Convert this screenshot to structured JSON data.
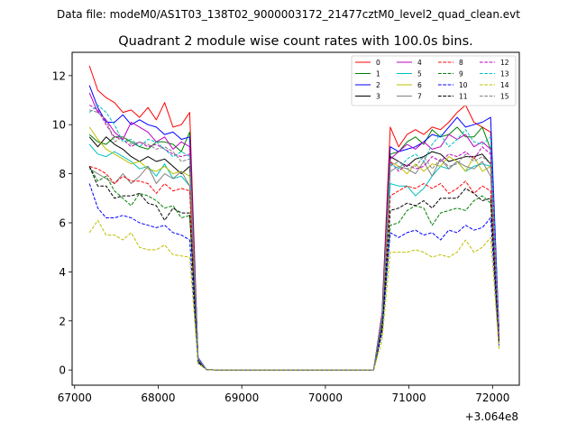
{
  "suptitle": "Data file: modeM0/AS1T03_138T02_9000003172_21477cztM0_level2_quad_clean.evt",
  "chart_data": {
    "type": "line",
    "title": "Quadrant 2 module wise count rates with 100.0s bins.",
    "xlabel": "",
    "ylabel": "",
    "x_offset_label": "+3.064e8",
    "xlim": [
      66970,
      72320
    ],
    "ylim": [
      -0.62,
      12.95
    ],
    "xticks": [
      67000,
      68000,
      69000,
      70000,
      71000,
      72000
    ],
    "yticks": [
      0,
      2,
      4,
      6,
      8,
      10,
      12
    ],
    "legend": {
      "placement": "top-right",
      "columns": 4
    },
    "x": [
      67177,
      67277,
      67377,
      67477,
      67577,
      67677,
      67777,
      67877,
      67977,
      68077,
      68177,
      68277,
      68377,
      68477,
      68577,
      68677,
      68777,
      68877,
      68977,
      69077,
      69177,
      69277,
      69377,
      69477,
      69577,
      69677,
      69777,
      69877,
      69977,
      70077,
      70177,
      70277,
      70377,
      70477,
      70577,
      70677,
      70777,
      70877,
      70977,
      71077,
      71177,
      71277,
      71377,
      71477,
      71577,
      71677,
      71777,
      71877,
      71977,
      72077
    ],
    "series": [
      {
        "name": "0",
        "color": "#ff0000",
        "dash": "solid",
        "values": [
          12.4,
          11.4,
          11.1,
          10.9,
          10.5,
          10.6,
          10.3,
          10.7,
          10.2,
          10.9,
          9.9,
          10.0,
          10.5,
          0.45,
          0.02,
          0,
          0,
          0,
          0,
          0,
          0,
          0,
          0,
          0,
          0,
          0,
          0,
          0,
          0,
          0,
          0,
          0,
          0,
          0,
          0,
          2.3,
          9.9,
          9.1,
          9.6,
          9.8,
          9.6,
          9.9,
          9.8,
          10.1,
          10.5,
          10.8,
          10.1,
          9.9,
          9.7,
          1.6
        ]
      },
      {
        "name": "1",
        "color": "#008000",
        "dash": "solid",
        "values": [
          9.6,
          9.3,
          9.2,
          9.5,
          9.5,
          9.3,
          9.1,
          9.0,
          9.3,
          9.3,
          9.2,
          8.9,
          9.7,
          0.4,
          0.02,
          0,
          0,
          0,
          0,
          0,
          0,
          0,
          0,
          0,
          0,
          0,
          0,
          0,
          0,
          0,
          0,
          0,
          0,
          0,
          0,
          2.0,
          8.8,
          8.9,
          9.3,
          9.5,
          9.2,
          9.8,
          9.5,
          9.6,
          9.9,
          9.5,
          9.5,
          9.9,
          9.0,
          1.5
        ]
      },
      {
        "name": "2",
        "color": "#0000ff",
        "dash": "solid",
        "values": [
          11.6,
          10.7,
          10.1,
          10.1,
          10.4,
          10.0,
          10.2,
          10.0,
          9.9,
          9.6,
          9.7,
          9.4,
          9.5,
          0.5,
          0.02,
          0,
          0,
          0,
          0,
          0,
          0,
          0,
          0,
          0,
          0,
          0,
          0,
          0,
          0,
          0,
          0,
          0,
          0,
          0,
          0,
          2.2,
          9.1,
          8.9,
          9.0,
          9.1,
          9.3,
          9.6,
          9.5,
          9.9,
          10.3,
          9.9,
          10.0,
          10.1,
          10.3,
          1.6
        ]
      },
      {
        "name": "3",
        "color": "#000000",
        "dash": "solid",
        "values": [
          9.5,
          9.1,
          9.5,
          9.2,
          9.0,
          8.7,
          8.5,
          8.7,
          8.5,
          8.6,
          8.3,
          8.0,
          8.3,
          0.4,
          0.02,
          0,
          0,
          0,
          0,
          0,
          0,
          0,
          0,
          0,
          0,
          0,
          0,
          0,
          0,
          0,
          0,
          0,
          0,
          0,
          0,
          2.0,
          8.7,
          8.5,
          8.3,
          8.6,
          8.7,
          8.9,
          8.8,
          8.5,
          8.6,
          8.7,
          8.7,
          8.8,
          8.4,
          1.5
        ]
      },
      {
        "name": "4",
        "color": "#bf00bf",
        "dash": "solid",
        "values": [
          11.3,
          10.5,
          10.2,
          9.7,
          9.4,
          10.1,
          9.9,
          9.7,
          9.3,
          9.5,
          9.0,
          9.3,
          9.1,
          0.45,
          0.02,
          0,
          0,
          0,
          0,
          0,
          0,
          0,
          0,
          0,
          0,
          0,
          0,
          0,
          0,
          0,
          0,
          0,
          0,
          0,
          0,
          2.1,
          8.6,
          8.9,
          9.2,
          9.0,
          9.3,
          9.0,
          9.1,
          9.6,
          9.4,
          9.6,
          9.1,
          9.3,
          9.0,
          1.5
        ]
      },
      {
        "name": "5",
        "color": "#00bfbf",
        "dash": "solid",
        "values": [
          9.2,
          8.8,
          8.7,
          8.9,
          8.7,
          8.5,
          8.2,
          8.3,
          7.9,
          8.4,
          7.8,
          7.9,
          7.5,
          0.4,
          0.02,
          0,
          0,
          0,
          0,
          0,
          0,
          0,
          0,
          0,
          0,
          0,
          0,
          0,
          0,
          0,
          0,
          0,
          0,
          0,
          0,
          1.9,
          7.6,
          7.5,
          7.5,
          7.1,
          7.4,
          7.9,
          8.3,
          8.2,
          8.5,
          8.1,
          8.3,
          8.4,
          8.3,
          1.3
        ]
      },
      {
        "name": "6",
        "color": "#bfbf00",
        "dash": "solid",
        "values": [
          9.9,
          9.4,
          9.0,
          8.8,
          8.6,
          8.4,
          8.5,
          8.2,
          8.1,
          8.3,
          8.0,
          8.1,
          7.9,
          0.4,
          0.02,
          0,
          0,
          0,
          0,
          0,
          0,
          0,
          0,
          0,
          0,
          0,
          0,
          0,
          0,
          0,
          0,
          0,
          0,
          0,
          0,
          2.0,
          8.5,
          8.3,
          8.0,
          8.4,
          8.1,
          8.4,
          8.3,
          8.7,
          8.5,
          8.1,
          8.7,
          8.1,
          8.3,
          1.4
        ]
      },
      {
        "name": "7",
        "color": "#808080",
        "dash": "solid",
        "values": [
          8.2,
          8.0,
          7.8,
          7.6,
          8.0,
          7.6,
          7.9,
          8.3,
          7.6,
          8.0,
          7.8,
          8.1,
          7.5,
          0.4,
          0.02,
          0,
          0,
          0,
          0,
          0,
          0,
          0,
          0,
          0,
          0,
          0,
          0,
          0,
          0,
          0,
          0,
          0,
          0,
          0,
          0,
          1.9,
          8.1,
          8.3,
          8.2,
          8.0,
          8.5,
          7.9,
          8.6,
          8.2,
          8.5,
          8.3,
          8.2,
          8.5,
          7.9,
          1.3
        ]
      },
      {
        "name": "8",
        "color": "#ff0000",
        "dash": "dashed",
        "values": [
          8.3,
          8.2,
          8.0,
          7.6,
          7.9,
          7.7,
          7.7,
          7.6,
          7.2,
          7.6,
          7.3,
          7.4,
          7.3,
          0.35,
          0.02,
          0,
          0,
          0,
          0,
          0,
          0,
          0,
          0,
          0,
          0,
          0,
          0,
          0,
          0,
          0,
          0,
          0,
          0,
          0,
          0,
          1.8,
          7.1,
          7.3,
          7.5,
          7.4,
          7.6,
          7.4,
          7.6,
          7.2,
          7.4,
          7.7,
          7.2,
          7.5,
          7.3,
          1.2
        ]
      },
      {
        "name": "9",
        "color": "#008000",
        "dash": "dashed",
        "values": [
          8.3,
          7.7,
          7.9,
          7.3,
          7.0,
          6.7,
          7.2,
          7.1,
          6.9,
          6.6,
          6.7,
          6.2,
          6.3,
          0.35,
          0.02,
          0,
          0,
          0,
          0,
          0,
          0,
          0,
          0,
          0,
          0,
          0,
          0,
          0,
          0,
          0,
          0,
          0,
          0,
          0,
          0,
          1.7,
          5.9,
          6.0,
          6.5,
          6.7,
          6.6,
          5.9,
          6.4,
          6.5,
          6.6,
          6.5,
          6.9,
          7.1,
          6.8,
          1.1
        ]
      },
      {
        "name": "10",
        "color": "#0000ff",
        "dash": "dashed",
        "values": [
          7.6,
          6.6,
          6.2,
          6.2,
          6.3,
          6.2,
          6.0,
          5.9,
          5.8,
          5.9,
          5.6,
          5.5,
          5.3,
          0.3,
          0.02,
          0,
          0,
          0,
          0,
          0,
          0,
          0,
          0,
          0,
          0,
          0,
          0,
          0,
          0,
          0,
          0,
          0,
          0,
          0,
          0,
          1.5,
          5.6,
          5.4,
          5.6,
          5.7,
          5.5,
          5.6,
          5.3,
          5.7,
          5.6,
          5.9,
          5.7,
          5.8,
          6.2,
          1.0
        ]
      },
      {
        "name": "11",
        "color": "#000000",
        "dash": "dashed",
        "values": [
          8.3,
          7.5,
          7.5,
          7.0,
          7.1,
          7.1,
          7.2,
          6.8,
          6.7,
          6.1,
          6.6,
          6.4,
          6.4,
          0.35,
          0.02,
          0,
          0,
          0,
          0,
          0,
          0,
          0,
          0,
          0,
          0,
          0,
          0,
          0,
          0,
          0,
          0,
          0,
          0,
          0,
          0,
          1.7,
          6.5,
          6.6,
          6.8,
          6.7,
          6.9,
          6.6,
          7.0,
          7.0,
          7.0,
          7.4,
          7.2,
          6.9,
          7.0,
          1.1
        ]
      },
      {
        "name": "12",
        "color": "#bf00bf",
        "dash": "dashed",
        "values": [
          10.8,
          10.6,
          10.0,
          9.5,
          9.4,
          9.1,
          9.3,
          9.1,
          9.2,
          9.0,
          8.8,
          8.7,
          8.8,
          0.45,
          0.02,
          0,
          0,
          0,
          0,
          0,
          0,
          0,
          0,
          0,
          0,
          0,
          0,
          0,
          0,
          0,
          0,
          0,
          0,
          0,
          0,
          2.1,
          8.5,
          8.1,
          8.4,
          8.2,
          8.3,
          8.7,
          8.5,
          8.8,
          8.7,
          8.9,
          8.6,
          9.1,
          8.8,
          1.4
        ]
      },
      {
        "name": "13",
        "color": "#00bfbf",
        "dash": "dashed",
        "values": [
          10.5,
          10.8,
          10.5,
          10.0,
          9.3,
          9.4,
          9.1,
          9.4,
          9.3,
          9.0,
          8.7,
          8.9,
          8.7,
          0.45,
          0.02,
          0,
          0,
          0,
          0,
          0,
          0,
          0,
          0,
          0,
          0,
          0,
          0,
          0,
          0,
          0,
          0,
          0,
          0,
          0,
          0,
          2.1,
          8.4,
          8.2,
          8.6,
          8.8,
          8.5,
          9.2,
          9.6,
          9.1,
          9.4,
          9.8,
          9.3,
          9.2,
          9.5,
          1.5
        ]
      },
      {
        "name": "14",
        "color": "#bfbf00",
        "dash": "dashed",
        "values": [
          5.6,
          6.1,
          5.5,
          5.5,
          5.3,
          5.6,
          5.0,
          4.9,
          4.9,
          5.1,
          4.7,
          4.65,
          4.6,
          0.25,
          0.02,
          0,
          0,
          0,
          0,
          0,
          0,
          0,
          0,
          0,
          0,
          0,
          0,
          0,
          0,
          0,
          0,
          0,
          0,
          0,
          0,
          1.2,
          4.8,
          4.8,
          4.8,
          4.9,
          4.8,
          4.6,
          4.7,
          4.6,
          4.8,
          5.3,
          4.8,
          5.0,
          5.4,
          0.85
        ]
      },
      {
        "name": "15",
        "color": "#808080",
        "dash": "dashed",
        "values": [
          10.6,
          10.5,
          10.2,
          9.3,
          9.5,
          9.2,
          9.3,
          9.2,
          9.0,
          9.1,
          8.9,
          8.5,
          8.6,
          0.45,
          0.02,
          0,
          0,
          0,
          0,
          0,
          0,
          0,
          0,
          0,
          0,
          0,
          0,
          0,
          0,
          0,
          0,
          0,
          0,
          0,
          0,
          2.0,
          8.3,
          8.5,
          8.2,
          8.3,
          8.7,
          8.2,
          8.6,
          8.3,
          8.4,
          8.8,
          8.5,
          8.7,
          8.4,
          1.4
        ]
      }
    ]
  }
}
